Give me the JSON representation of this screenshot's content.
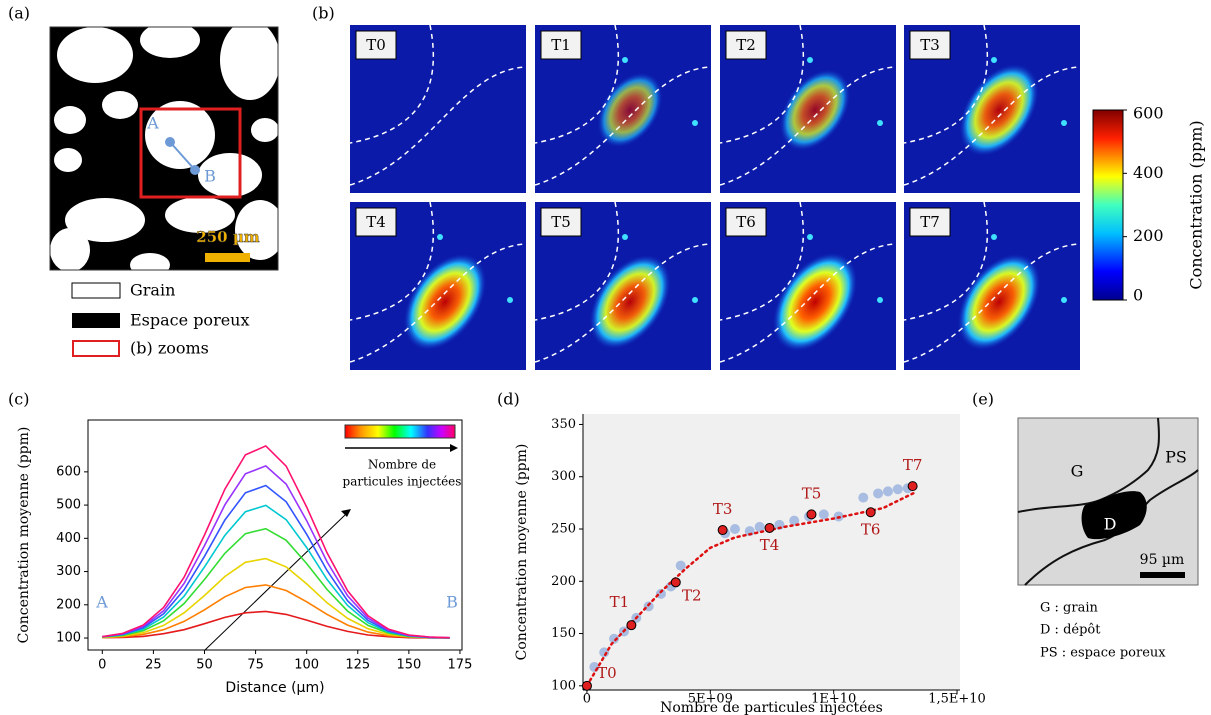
{
  "panel_labels": [
    "(a)",
    "(b)",
    "(c)",
    "(d)",
    "(e)"
  ],
  "panel_a": {
    "points": [
      "A",
      "B"
    ],
    "scale": "250 µm",
    "legend": [
      "Grain",
      "Espace poreux",
      "(b) zooms"
    ]
  },
  "panel_b": {
    "tiles": [
      "T0",
      "T1",
      "T2",
      "T3",
      "T4",
      "T5",
      "T6",
      "T7"
    ],
    "colorbar": {
      "label": "Concentration (ppm)",
      "lim": [
        0,
        600
      ],
      "ticks": [
        0,
        200,
        400,
        600
      ]
    }
  },
  "panel_e": {
    "labels": [
      "G",
      "D",
      "PS"
    ],
    "scale": "95 µm",
    "legend": [
      "G : grain",
      "D : dépôt",
      "PS : espace poreux"
    ]
  },
  "chart_data": [
    {
      "type": "line",
      "xlabel": "Distance (µm)",
      "ylabel": "Concentration moyenne (ppm)",
      "annotations": [
        "A",
        "B"
      ],
      "colorbar_label": [
        "Nombre de",
        "particules injectées"
      ],
      "xlim": [
        -7,
        176
      ],
      "ylim": [
        64,
        756
      ],
      "xticks": [
        0,
        25,
        50,
        75,
        100,
        125,
        150,
        175
      ],
      "yticks": [
        100,
        200,
        300,
        400,
        500,
        600
      ],
      "x": [
        0,
        10,
        20,
        30,
        40,
        50,
        60,
        70,
        80,
        90,
        100,
        110,
        120,
        130,
        140,
        150,
        160,
        170
      ],
      "series": [
        {
          "color": "#e41a1c",
          "values": [
            101,
            102,
            105,
            113,
            125,
            143,
            162,
            176,
            180,
            171,
            154,
            135,
            120,
            109,
            104,
            101,
            100,
            100
          ]
        },
        {
          "color": "#ff7f00",
          "values": [
            101,
            104,
            111,
            125,
            150,
            185,
            224,
            252,
            260,
            243,
            209,
            171,
            139,
            118,
            107,
            103,
            101,
            100
          ]
        },
        {
          "color": "#e8d400",
          "values": [
            102,
            106,
            116,
            138,
            176,
            228,
            285,
            328,
            339,
            314,
            263,
            206,
            159,
            128,
            111,
            104,
            101,
            100
          ]
        },
        {
          "color": "#33dd33",
          "values": [
            103,
            108,
            122,
            152,
            204,
            276,
            355,
            414,
            429,
            394,
            324,
            246,
            181,
            138,
            115,
            105,
            102,
            100
          ]
        },
        {
          "color": "#00c8d0",
          "values": [
            103,
            110,
            127,
            163,
            226,
            314,
            409,
            480,
            499,
            456,
            372,
            276,
            198,
            146,
            118,
            106,
            102,
            100
          ]
        },
        {
          "color": "#3355ff",
          "values": [
            104,
            111,
            131,
            173,
            245,
            346,
            455,
            537,
            559,
            510,
            412,
            303,
            212,
            153,
            121,
            107,
            102,
            100
          ]
        },
        {
          "color": "#9933ff",
          "values": [
            104,
            113,
            135,
            182,
            264,
            378,
            501,
            594,
            618,
            563,
            453,
            329,
            227,
            160,
            124,
            108,
            103,
            101
          ]
        },
        {
          "color": "#ff1170",
          "values": [
            104,
            114,
            139,
            192,
            283,
            410,
            548,
            651,
            678,
            617,
            494,
            356,
            242,
            167,
            127,
            109,
            103,
            101
          ]
        }
      ]
    },
    {
      "type": "scatter",
      "xlabel": "Nombre de particules injectées",
      "ylabel": "Concentration moyenne (ppm)",
      "xlim": [
        -160000000,
        15120000000
      ],
      "ylim": [
        96,
        360
      ],
      "xticks": [
        0,
        {
          "value": 5000000000,
          "label": "5E+09"
        },
        {
          "value": 10000000000,
          "label": "1E+10"
        },
        {
          "value": 15000000000,
          "label": "1,5E+10"
        }
      ],
      "yticks": [
        100,
        150,
        200,
        250,
        300,
        350
      ],
      "cloud": {
        "color": "#6d94d6",
        "x": [
          300000000,
          700000000,
          1100000000,
          1500000000,
          2000000000,
          2500000000,
          3000000000,
          3400000000,
          3800000000,
          5600000000,
          6000000000,
          6600000000,
          7000000000,
          7800000000,
          8400000000,
          9000000000,
          9600000000,
          10200000000,
          11200000000,
          11800000000,
          12200000000,
          12600000000,
          13000000000
        ],
        "values": [
          118,
          132,
          145,
          152,
          165,
          176,
          188,
          195,
          215,
          246,
          250,
          248,
          252,
          254,
          258,
          262,
          264,
          262,
          280,
          284,
          286,
          288,
          289
        ]
      },
      "trend": {
        "color": "#dd1111",
        "x": [
          0,
          1000000000,
          2000000000,
          3000000000,
          4000000000,
          5000000000,
          6000000000,
          8000000000,
          10000000000,
          12000000000,
          13300000000
        ],
        "values": [
          100,
          140,
          165,
          190,
          212,
          232,
          242,
          252,
          260,
          270,
          285
        ]
      },
      "points": {
        "color": "#e02020",
        "labels": [
          "T0",
          "T1",
          "T2",
          "T3",
          "T4",
          "T5",
          "T6",
          "T7"
        ],
        "x": [
          0,
          1800000000,
          3600000000,
          5500000000,
          7400000000,
          9100000000,
          11500000000,
          13200000000
        ],
        "values": [
          100,
          158,
          199,
          249,
          251,
          264,
          266,
          291
        ]
      }
    }
  ]
}
